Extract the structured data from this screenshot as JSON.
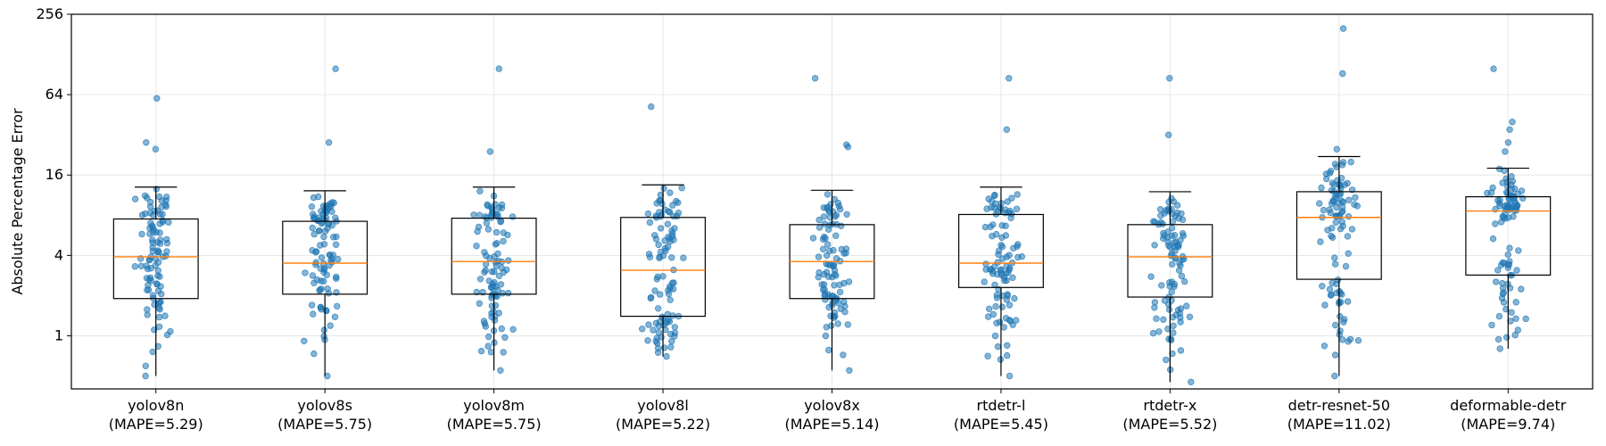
{
  "chart_data": {
    "type": "box",
    "title": "",
    "xlabel": "",
    "ylabel": "Absolute Percentage Error",
    "y_scale": "log2",
    "ylim": [
      0.4,
      256
    ],
    "y_ticks": [
      1,
      4,
      16,
      64,
      256
    ],
    "y_tick_labels": [
      "1",
      "4",
      "16",
      "64",
      "256"
    ],
    "grid": true,
    "colors": {
      "box": "#000000",
      "median": "#ff7f0e",
      "points": "#1f77b4",
      "grid": "#e6e6e6"
    },
    "categories": [
      {
        "name": "yolov8n",
        "mape_label": "(MAPE=5.29)"
      },
      {
        "name": "yolov8s",
        "mape_label": "(MAPE=5.75)"
      },
      {
        "name": "yolov8m",
        "mape_label": "(MAPE=5.75)"
      },
      {
        "name": "yolov8l",
        "mape_label": "(MAPE=5.22)"
      },
      {
        "name": "yolov8x",
        "mape_label": "(MAPE=5.14)"
      },
      {
        "name": "rtdetr-l",
        "mape_label": "(MAPE=5.45)"
      },
      {
        "name": "rtdetr-x",
        "mape_label": "(MAPE=5.52)"
      },
      {
        "name": "detr-resnet-50",
        "mape_label": "(MAPE=11.02)"
      },
      {
        "name": "deformable-detr",
        "mape_label": "(MAPE=9.74)"
      }
    ],
    "boxes": [
      {
        "whislo": 0.5,
        "q1": 1.9,
        "med": 3.9,
        "q3": 7.5,
        "whishi": 13.0,
        "outliers_high": [
          25,
          28,
          60
        ]
      },
      {
        "whislo": 0.5,
        "q1": 2.05,
        "med": 3.5,
        "q3": 7.2,
        "whishi": 12.2,
        "outliers_high": [
          28,
          100
        ]
      },
      {
        "whislo": 0.55,
        "q1": 2.05,
        "med": 3.6,
        "q3": 7.6,
        "whishi": 13.0,
        "outliers_high": [
          24,
          100
        ]
      },
      {
        "whislo": 0.7,
        "q1": 1.4,
        "med": 3.1,
        "q3": 7.7,
        "whishi": 13.5,
        "outliers_high": [
          52
        ]
      },
      {
        "whislo": 0.55,
        "q1": 1.9,
        "med": 3.6,
        "q3": 6.8,
        "whishi": 12.3,
        "outliers_high": [
          26,
          27,
          85
        ]
      },
      {
        "whislo": 0.5,
        "q1": 2.3,
        "med": 3.5,
        "q3": 8.1,
        "whishi": 13.0,
        "outliers_high": [
          35,
          85
        ]
      },
      {
        "whislo": 0.45,
        "q1": 1.95,
        "med": 3.9,
        "q3": 6.8,
        "whishi": 12.0,
        "outliers_high": [
          32,
          85
        ]
      },
      {
        "whislo": 0.5,
        "q1": 2.65,
        "med": 7.7,
        "q3": 12.0,
        "whishi": 22.0,
        "outliers_high": [
          25,
          92,
          200
        ]
      },
      {
        "whislo": 0.8,
        "q1": 2.85,
        "med": 8.6,
        "q3": 11.0,
        "whishi": 18.0,
        "outliers_high": [
          24,
          28,
          35,
          40,
          100
        ]
      }
    ],
    "points_per_group": 100
  }
}
